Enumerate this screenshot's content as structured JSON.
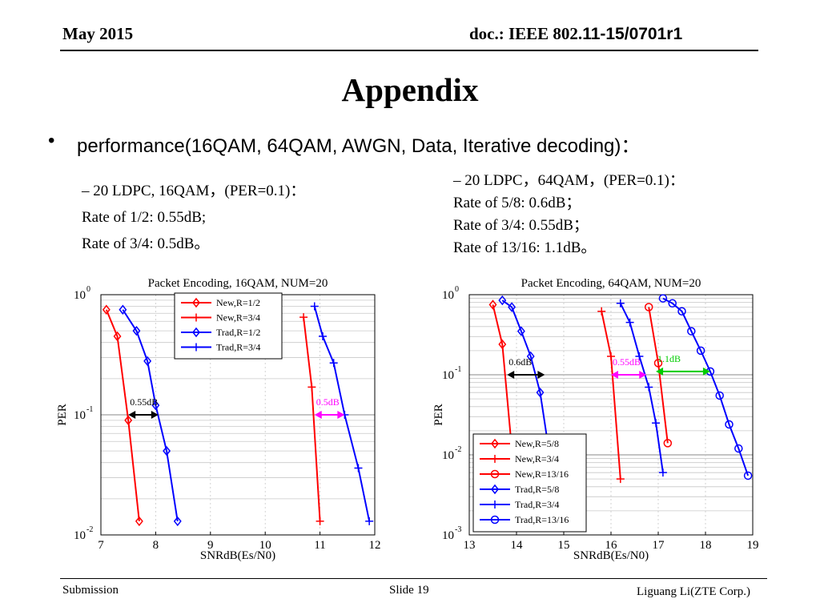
{
  "header": {
    "date": "May 2015",
    "doc_prefix": "doc.: IEEE 802.",
    "doc_suffix": "11-15/0701r1"
  },
  "title": "Appendix",
  "bullet": {
    "symbol": "•",
    "text": "performance(16QAM, 64QAM, AWGN, Data, Iterative decoding)："
  },
  "left_block": {
    "heading": "–   20 LDPC, 16QAM，(PER=0.1)：",
    "lines": [
      "Rate of 1/2: 0.55dB;",
      "Rate of 3/4: 0.5dB。"
    ]
  },
  "right_block": {
    "heading": "–   20 LDPC，64QAM，(PER=0.1)：",
    "lines": [
      "Rate of 5/8: 0.6dB；",
      "Rate of 3/4: 0.55dB；",
      "Rate of 13/16: 1.1dB。"
    ]
  },
  "chart_data": [
    {
      "type": "line",
      "title": "Packet Encoding, 16QAM, NUM=20",
      "xlabel": "SNRdB(Es/N0)",
      "ylabel": "PER",
      "xlim": [
        7,
        12
      ],
      "ylim": [
        0.01,
        1
      ],
      "yscale": "log",
      "xticks": [
        "7",
        "8",
        "9",
        "10",
        "11",
        "12"
      ],
      "grid": true,
      "legend_position": "top-center",
      "series": [
        {
          "name": "New,R=1/2",
          "color": "#ff0000",
          "marker": "diamond",
          "x": [
            7.1,
            7.3,
            7.5,
            7.7
          ],
          "y": [
            0.75,
            0.45,
            0.09,
            0.013
          ]
        },
        {
          "name": "New,R=3/4",
          "color": "#ff0000",
          "marker": "plus",
          "x": [
            10.7,
            10.85,
            11.0
          ],
          "y": [
            0.65,
            0.17,
            0.013
          ]
        },
        {
          "name": "Trad,R=1/2",
          "color": "#0000ff",
          "marker": "diamond",
          "x": [
            7.4,
            7.65,
            7.85,
            8.0,
            8.2,
            8.4
          ],
          "y": [
            0.75,
            0.5,
            0.28,
            0.12,
            0.05,
            0.013
          ]
        },
        {
          "name": "Trad,R=3/4",
          "color": "#0000ff",
          "marker": "plus",
          "x": [
            10.9,
            11.05,
            11.25,
            11.45,
            11.7,
            11.9
          ],
          "y": [
            0.8,
            0.45,
            0.27,
            0.1,
            0.036,
            0.013
          ]
        }
      ],
      "annotations": [
        {
          "text": "0.55dB",
          "color": "#000000",
          "x1": 7.5,
          "x2": 8.05,
          "y": 0.1
        },
        {
          "text": "0.5dB",
          "color": "#ff00ff",
          "x1": 10.9,
          "x2": 11.45,
          "y": 0.1
        }
      ]
    },
    {
      "type": "line",
      "title": "Packet Encoding, 64QAM, NUM=20",
      "xlabel": "SNRdB(Es/N0)",
      "ylabel": "PER",
      "xlim": [
        13,
        19
      ],
      "ylim": [
        0.001,
        1
      ],
      "yscale": "log",
      "xticks": [
        "13",
        "14",
        "15",
        "16",
        "17",
        "18",
        "19"
      ],
      "grid": true,
      "legend_position": "bottom-center",
      "series": [
        {
          "name": "New,R=5/8",
          "color": "#ff0000",
          "marker": "diamond",
          "x": [
            13.5,
            13.7,
            13.9
          ],
          "y": [
            0.75,
            0.24,
            0.012
          ]
        },
        {
          "name": "New,R=3/4",
          "color": "#ff0000",
          "marker": "plus",
          "x": [
            15.8,
            16.0,
            16.2
          ],
          "y": [
            0.62,
            0.17,
            0.005
          ]
        },
        {
          "name": "New,R=13/16",
          "color": "#ff0000",
          "marker": "circle",
          "x": [
            16.8,
            17.0,
            17.2
          ],
          "y": [
            0.7,
            0.14,
            0.014
          ]
        },
        {
          "name": "Trad,R=5/8",
          "color": "#0000ff",
          "marker": "diamond",
          "x": [
            13.7,
            13.9,
            14.1,
            14.3,
            14.5,
            14.7
          ],
          "y": [
            0.85,
            0.7,
            0.35,
            0.17,
            0.06,
            0.01
          ]
        },
        {
          "name": "Trad,R=3/4",
          "color": "#0000ff",
          "marker": "plus",
          "x": [
            16.2,
            16.4,
            16.6,
            16.8,
            16.95,
            17.1
          ],
          "y": [
            0.78,
            0.45,
            0.17,
            0.07,
            0.025,
            0.006
          ]
        },
        {
          "name": "Trad,R=13/16",
          "color": "#0000ff",
          "marker": "circle",
          "x": [
            17.1,
            17.3,
            17.5,
            17.7,
            17.9,
            18.1,
            18.3,
            18.5,
            18.7,
            18.9
          ],
          "y": [
            0.9,
            0.78,
            0.62,
            0.35,
            0.2,
            0.11,
            0.055,
            0.024,
            0.012,
            0.0055
          ]
        }
      ],
      "annotations": [
        {
          "text": "0.6dB",
          "color": "#000000",
          "x1": 13.8,
          "x2": 14.6,
          "y": 0.1
        },
        {
          "text": "0.55dB",
          "color": "#ff00ff",
          "x1": 16.0,
          "x2": 16.75,
          "y": 0.1
        },
        {
          "text": "1.1dB",
          "color": "#00cc00",
          "x1": 16.95,
          "x2": 18.1,
          "y": 0.11
        }
      ]
    }
  ],
  "footer": {
    "left": "Submission",
    "center": "Slide 19",
    "right": "Liguang Li(ZTE Corp.)"
  }
}
